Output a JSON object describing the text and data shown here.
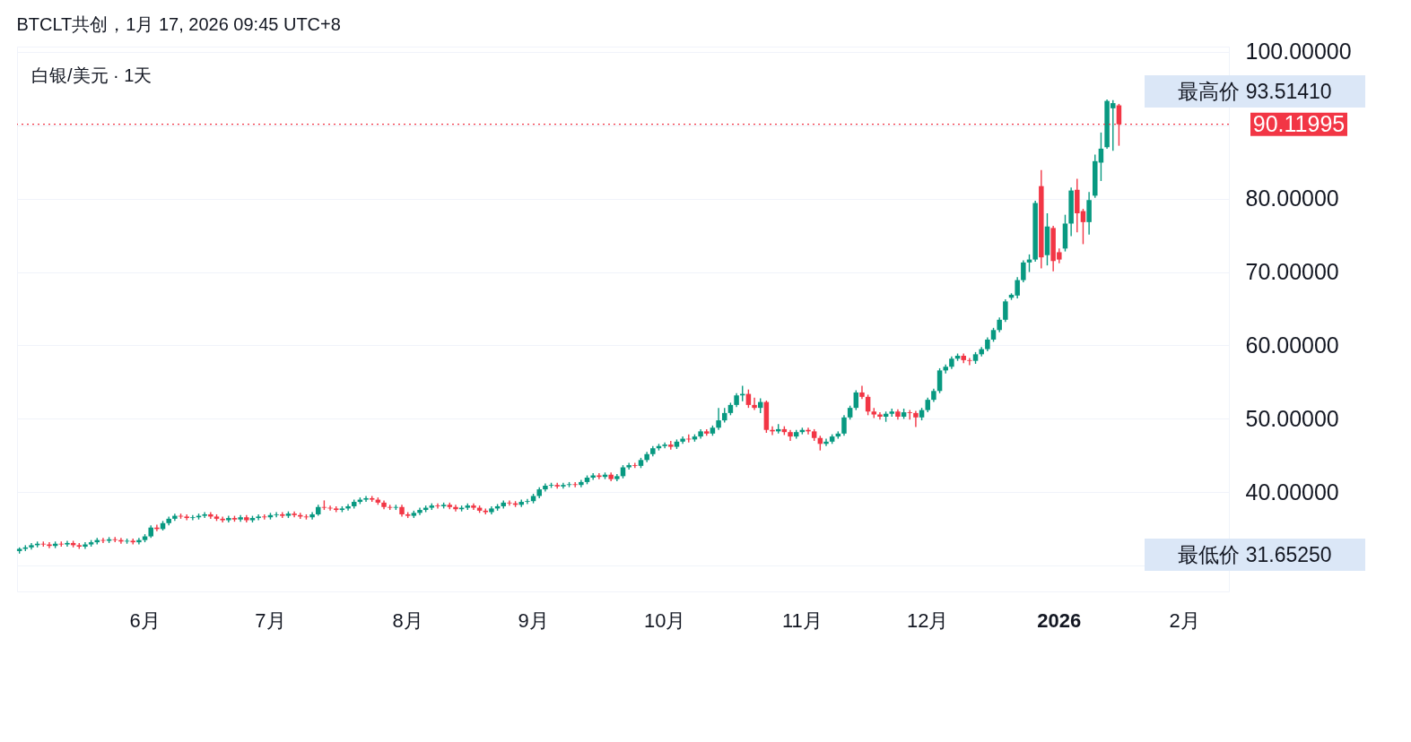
{
  "chart_data": {
    "type": "candlestick",
    "title": "BTCLT共创，1月 17, 2026 09:45 UTC+8",
    "subtitle": "白银/美元 · 1天",
    "categories": [
      null,
      null,
      null,
      null,
      null,
      null,
      null,
      null,
      null,
      null,
      null,
      null,
      null,
      null,
      null,
      null,
      null,
      null,
      null,
      null,
      null,
      "6月",
      null,
      null,
      null,
      null,
      null,
      null,
      null,
      null,
      null,
      null,
      null,
      null,
      null,
      null,
      null,
      null,
      null,
      null,
      null,
      null,
      "7月",
      null,
      null,
      null,
      null,
      null,
      null,
      null,
      null,
      null,
      null,
      null,
      null,
      null,
      null,
      null,
      null,
      null,
      null,
      null,
      null,
      null,
      null,
      "8月",
      null,
      null,
      null,
      null,
      null,
      null,
      null,
      null,
      null,
      null,
      null,
      null,
      null,
      null,
      null,
      null,
      null,
      null,
      null,
      null,
      "9月",
      null,
      null,
      null,
      null,
      null,
      null,
      null,
      null,
      null,
      null,
      null,
      null,
      null,
      null,
      null,
      null,
      null,
      null,
      null,
      null,
      null,
      "10月",
      null,
      null,
      null,
      null,
      null,
      null,
      null,
      null,
      null,
      null,
      null,
      null,
      null,
      null,
      null,
      null,
      null,
      null,
      null,
      null,
      null,
      null,
      "11月",
      null,
      null,
      null,
      null,
      null,
      null,
      null,
      null,
      null,
      null,
      null,
      null,
      null,
      null,
      null,
      null,
      null,
      null,
      null,
      null,
      "12月",
      null,
      null,
      null,
      null,
      null,
      null,
      null,
      null,
      null,
      null,
      null,
      null,
      null,
      null,
      null,
      null,
      null,
      null,
      null,
      null,
      null,
      "2026",
      null,
      null,
      null,
      null,
      null,
      null,
      null,
      null,
      null,
      null,
      null,
      null,
      null,
      null,
      null,
      null,
      null,
      null,
      null,
      null,
      "2月",
      null,
      null,
      null,
      null,
      null,
      null,
      null
    ],
    "ohlc": [
      [
        32.0,
        32.5,
        31.6525,
        32.3
      ],
      [
        32.3,
        32.8,
        32.0,
        32.5
      ],
      [
        32.5,
        33.1,
        32.2,
        32.8
      ],
      [
        32.8,
        33.3,
        32.5,
        33.0
      ],
      [
        33.0,
        33.3,
        32.6,
        32.9
      ],
      [
        32.9,
        33.2,
        32.4,
        32.7
      ],
      [
        32.7,
        33.3,
        32.4,
        33.0
      ],
      [
        33.0,
        33.3,
        32.6,
        32.9
      ],
      [
        32.9,
        33.4,
        32.6,
        33.1
      ],
      [
        33.1,
        33.4,
        32.5,
        32.8
      ],
      [
        32.8,
        33.1,
        32.3,
        32.6
      ],
      [
        32.6,
        33.2,
        32.3,
        32.9
      ],
      [
        32.9,
        33.5,
        32.6,
        33.2
      ],
      [
        33.2,
        33.8,
        32.9,
        33.5
      ],
      [
        33.5,
        33.8,
        33.1,
        33.4
      ],
      [
        33.4,
        33.9,
        33.1,
        33.6
      ],
      [
        33.6,
        33.9,
        33.2,
        33.5
      ],
      [
        33.5,
        33.8,
        33.0,
        33.3
      ],
      [
        33.3,
        33.7,
        33.0,
        33.4
      ],
      [
        33.4,
        33.7,
        32.9,
        33.2
      ],
      [
        33.2,
        33.8,
        32.9,
        33.5
      ],
      [
        33.5,
        34.3,
        33.2,
        34.0
      ],
      [
        34.0,
        35.5,
        33.8,
        35.2
      ],
      [
        35.2,
        35.6,
        34.7,
        35.0
      ],
      [
        35.0,
        36.1,
        34.8,
        35.8
      ],
      [
        35.8,
        36.7,
        35.5,
        36.4
      ],
      [
        36.4,
        37.1,
        36.1,
        36.8
      ],
      [
        36.8,
        37.1,
        36.4,
        36.7
      ],
      [
        36.7,
        37.0,
        36.2,
        36.5
      ],
      [
        36.5,
        36.9,
        36.2,
        36.6
      ],
      [
        36.6,
        37.1,
        36.3,
        36.8
      ],
      [
        36.8,
        37.3,
        36.5,
        37.0
      ],
      [
        37.0,
        37.3,
        36.4,
        36.7
      ],
      [
        36.7,
        37.0,
        36.1,
        36.4
      ],
      [
        36.4,
        36.7,
        35.9,
        36.2
      ],
      [
        36.2,
        36.8,
        35.9,
        36.5
      ],
      [
        36.5,
        36.8,
        36.0,
        36.3
      ],
      [
        36.3,
        36.9,
        36.0,
        36.6
      ],
      [
        36.6,
        36.9,
        35.9,
        36.2
      ],
      [
        36.2,
        36.8,
        35.9,
        36.5
      ],
      [
        36.5,
        37.0,
        36.2,
        36.7
      ],
      [
        36.7,
        37.0,
        36.3,
        36.6
      ],
      [
        36.6,
        37.2,
        36.3,
        36.9
      ],
      [
        36.9,
        37.3,
        36.6,
        37.0
      ],
      [
        37.0,
        37.3,
        36.5,
        36.8
      ],
      [
        36.8,
        37.4,
        36.5,
        37.1
      ],
      [
        37.1,
        37.4,
        36.6,
        36.9
      ],
      [
        36.9,
        37.2,
        36.4,
        36.7
      ],
      [
        36.7,
        37.0,
        36.3,
        36.6
      ],
      [
        36.6,
        37.3,
        36.3,
        37.0
      ],
      [
        37.0,
        38.3,
        36.8,
        38.0
      ],
      [
        38.0,
        38.9,
        37.6,
        37.9
      ],
      [
        37.9,
        38.2,
        37.5,
        37.8
      ],
      [
        37.8,
        38.1,
        37.3,
        37.6
      ],
      [
        37.6,
        38.1,
        37.3,
        37.8
      ],
      [
        37.8,
        38.4,
        37.5,
        38.1
      ],
      [
        38.1,
        39.0,
        37.8,
        38.7
      ],
      [
        38.7,
        39.3,
        38.4,
        39.0
      ],
      [
        39.0,
        39.5,
        38.7,
        39.2
      ],
      [
        39.2,
        39.5,
        38.7,
        39.0
      ],
      [
        39.0,
        39.3,
        38.3,
        38.6
      ],
      [
        38.6,
        38.9,
        37.7,
        38.0
      ],
      [
        38.0,
        38.3,
        37.6,
        37.9
      ],
      [
        37.9,
        38.3,
        37.6,
        38.0
      ],
      [
        38.0,
        38.3,
        36.7,
        37.0
      ],
      [
        37.0,
        37.3,
        36.5,
        36.8
      ],
      [
        36.8,
        37.5,
        36.5,
        37.2
      ],
      [
        37.2,
        37.9,
        36.9,
        37.6
      ],
      [
        37.6,
        38.2,
        37.3,
        37.9
      ],
      [
        37.9,
        38.5,
        37.6,
        38.2
      ],
      [
        38.2,
        38.5,
        37.8,
        38.1
      ],
      [
        38.1,
        38.6,
        37.8,
        38.3
      ],
      [
        38.3,
        38.6,
        37.7,
        38.0
      ],
      [
        38.0,
        38.3,
        37.4,
        37.7
      ],
      [
        37.7,
        38.2,
        37.4,
        37.9
      ],
      [
        37.9,
        38.5,
        37.6,
        38.2
      ],
      [
        38.2,
        38.5,
        37.6,
        37.9
      ],
      [
        37.9,
        38.2,
        37.2,
        37.5
      ],
      [
        37.5,
        37.8,
        37.0,
        37.3
      ],
      [
        37.3,
        38.1,
        37.0,
        37.8
      ],
      [
        37.8,
        38.4,
        37.5,
        38.1
      ],
      [
        38.1,
        38.9,
        37.8,
        38.6
      ],
      [
        38.6,
        38.9,
        38.2,
        38.5
      ],
      [
        38.5,
        38.8,
        38.0,
        38.3
      ],
      [
        38.3,
        39.0,
        38.0,
        38.7
      ],
      [
        38.7,
        39.1,
        38.4,
        38.8
      ],
      [
        38.8,
        39.8,
        38.5,
        39.5
      ],
      [
        39.5,
        40.7,
        39.2,
        40.4
      ],
      [
        40.4,
        41.2,
        40.1,
        40.9
      ],
      [
        40.9,
        41.3,
        40.6,
        41.0
      ],
      [
        41.0,
        41.3,
        40.5,
        40.8
      ],
      [
        40.8,
        41.3,
        40.5,
        41.0
      ],
      [
        41.0,
        41.4,
        40.7,
        41.1
      ],
      [
        41.1,
        41.4,
        40.7,
        41.0
      ],
      [
        41.0,
        41.7,
        40.7,
        41.4
      ],
      [
        41.4,
        42.3,
        41.1,
        42.0
      ],
      [
        42.0,
        42.6,
        41.7,
        42.3
      ],
      [
        42.3,
        42.6,
        41.8,
        42.1
      ],
      [
        42.1,
        42.7,
        41.8,
        42.4
      ],
      [
        42.4,
        42.7,
        41.5,
        41.8
      ],
      [
        41.8,
        42.5,
        41.5,
        42.2
      ],
      [
        42.2,
        43.7,
        41.9,
        43.4
      ],
      [
        43.4,
        44.0,
        43.1,
        43.7
      ],
      [
        43.7,
        44.0,
        43.3,
        43.6
      ],
      [
        43.6,
        44.7,
        43.3,
        44.4
      ],
      [
        44.4,
        45.5,
        44.1,
        45.2
      ],
      [
        45.2,
        46.3,
        44.9,
        46.0
      ],
      [
        46.0,
        46.6,
        45.7,
        46.3
      ],
      [
        46.3,
        46.8,
        46.0,
        46.5
      ],
      [
        46.5,
        47.0,
        45.8,
        46.2
      ],
      [
        46.2,
        47.2,
        45.9,
        46.9
      ],
      [
        46.9,
        47.6,
        46.6,
        47.3
      ],
      [
        47.3,
        47.9,
        46.8,
        47.2
      ],
      [
        47.2,
        47.9,
        46.9,
        47.6
      ],
      [
        47.6,
        48.6,
        47.3,
        48.3
      ],
      [
        48.3,
        48.6,
        47.7,
        48.0
      ],
      [
        48.0,
        49.1,
        47.7,
        48.8
      ],
      [
        48.8,
        51.5,
        48.5,
        49.8
      ],
      [
        49.8,
        51.5,
        49.5,
        50.8
      ],
      [
        50.8,
        52.2,
        50.5,
        51.9
      ],
      [
        51.9,
        53.5,
        51.6,
        53.2
      ],
      [
        53.2,
        54.5,
        52.4,
        53.4
      ],
      [
        53.4,
        54.0,
        51.5,
        51.9
      ],
      [
        51.9,
        52.9,
        51.2,
        51.5
      ],
      [
        51.5,
        52.8,
        50.8,
        52.3
      ],
      [
        52.3,
        52.5,
        48.1,
        48.5
      ],
      [
        48.5,
        49.0,
        47.8,
        48.3
      ],
      [
        48.3,
        49.3,
        48.0,
        48.6
      ],
      [
        48.6,
        49.0,
        47.8,
        48.2
      ],
      [
        48.2,
        48.5,
        47.0,
        47.6
      ],
      [
        47.6,
        48.5,
        47.3,
        48.2
      ],
      [
        48.2,
        48.8,
        47.9,
        48.5
      ],
      [
        48.5,
        48.8,
        47.9,
        48.3
      ],
      [
        48.3,
        48.6,
        47.0,
        47.4
      ],
      [
        47.4,
        47.7,
        45.7,
        46.6
      ],
      [
        46.6,
        47.3,
        46.3,
        46.9
      ],
      [
        46.9,
        47.9,
        46.6,
        47.6
      ],
      [
        47.6,
        48.3,
        47.3,
        48.0
      ],
      [
        48.0,
        50.5,
        47.7,
        50.2
      ],
      [
        50.2,
        51.8,
        49.9,
        51.5
      ],
      [
        51.5,
        53.9,
        51.2,
        53.6
      ],
      [
        53.6,
        54.5,
        52.7,
        53.0
      ],
      [
        53.0,
        53.3,
        50.5,
        51.0
      ],
      [
        51.0,
        51.5,
        50.1,
        50.6
      ],
      [
        50.6,
        50.9,
        49.9,
        50.3
      ],
      [
        50.3,
        51.0,
        49.6,
        50.7
      ],
      [
        50.7,
        51.4,
        50.3,
        51.0
      ],
      [
        51.0,
        51.3,
        49.9,
        50.3
      ],
      [
        50.3,
        51.4,
        50.0,
        50.9
      ],
      [
        50.9,
        51.2,
        49.9,
        50.8
      ],
      [
        50.8,
        51.1,
        48.9,
        50.2
      ],
      [
        50.2,
        51.5,
        49.8,
        51.2
      ],
      [
        51.2,
        52.9,
        50.9,
        52.6
      ],
      [
        52.6,
        54.1,
        52.3,
        53.8
      ],
      [
        53.8,
        56.9,
        53.5,
        56.6
      ],
      [
        56.6,
        57.4,
        56.2,
        57.1
      ],
      [
        57.1,
        58.5,
        56.8,
        58.2
      ],
      [
        58.2,
        58.9,
        57.9,
        58.6
      ],
      [
        58.6,
        58.9,
        57.6,
        58.0
      ],
      [
        58.0,
        58.3,
        57.3,
        57.9
      ],
      [
        57.9,
        59.1,
        57.5,
        58.8
      ],
      [
        58.8,
        59.8,
        58.5,
        59.5
      ],
      [
        59.5,
        61.1,
        59.2,
        60.8
      ],
      [
        60.8,
        62.4,
        60.5,
        62.1
      ],
      [
        62.1,
        63.8,
        61.8,
        63.5
      ],
      [
        63.5,
        66.3,
        63.2,
        66.0
      ],
      [
        66.5,
        67.1,
        66.2,
        66.9
      ],
      [
        66.8,
        69.3,
        66.4,
        68.9
      ],
      [
        68.9,
        71.6,
        68.6,
        71.3
      ],
      [
        71.3,
        72.4,
        70.0,
        71.7
      ],
      [
        71.7,
        79.7,
        71.4,
        79.4
      ],
      [
        81.7,
        83.9,
        70.5,
        72.0
      ],
      [
        72.3,
        78.0,
        70.9,
        76.2
      ],
      [
        76.0,
        76.3,
        70.1,
        71.5
      ],
      [
        72.7,
        73.2,
        71.2,
        71.7
      ],
      [
        73.2,
        77.8,
        72.8,
        76.6
      ],
      [
        76.6,
        81.5,
        74.9,
        81.1
      ],
      [
        81.2,
        82.7,
        75.4,
        78.0
      ],
      [
        78.3,
        78.6,
        73.8,
        76.8
      ],
      [
        76.8,
        80.9,
        75.1,
        79.8
      ],
      [
        80.4,
        86.0,
        80.1,
        85.1
      ],
      [
        84.9,
        89.0,
        82.4,
        86.8
      ],
      [
        87.0,
        93.5141,
        86.8,
        93.3
      ],
      [
        92.3,
        93.4,
        86.5,
        93.0
      ],
      [
        92.7,
        92.9,
        87.2,
        90.11995
      ],
      null,
      null,
      null,
      null,
      null,
      null,
      null,
      null,
      null,
      null,
      null,
      null,
      null,
      null,
      null,
      null,
      null,
      null
    ],
    "ylim": [
      26.5,
      100.7
    ],
    "yticks": [
      {
        "value": 30,
        "label": null
      },
      {
        "value": 40,
        "label": "40.00000"
      },
      {
        "value": 50,
        "label": "50.00000"
      },
      {
        "value": 60,
        "label": "60.00000"
      },
      {
        "value": 70,
        "label": "70.00000"
      },
      {
        "value": 80,
        "label": "80.00000"
      },
      {
        "value": 90,
        "label": null
      },
      {
        "value": 100,
        "label": "100.00000"
      }
    ],
    "grid": "y",
    "ref_lines": [
      {
        "axis": "y",
        "value": 90.11995,
        "label": "90.11995",
        "color": "#f23645",
        "line_style": "dotted"
      }
    ],
    "annotations": [
      "最高价 93.51410",
      "最低价 31.65250"
    ]
  }
}
